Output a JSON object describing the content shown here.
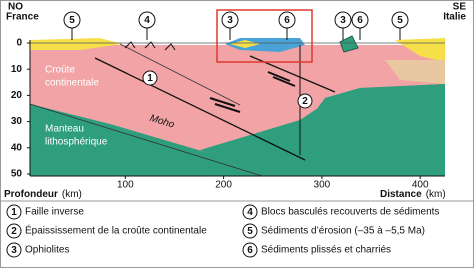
{
  "header": {
    "left": [
      "NO",
      "France"
    ],
    "right": [
      "SE",
      "Italie"
    ]
  },
  "callouts_top": [
    "5",
    "4",
    "3",
    "6",
    "3",
    "6",
    "5"
  ],
  "labels": {
    "crust": [
      "Croûte",
      "continentale"
    ],
    "mantle": [
      "Manteau",
      "lithosphérique"
    ],
    "moho": "Moho"
  },
  "callouts_section": [
    "1",
    "2"
  ],
  "axes": {
    "y_label": "Profondeur",
    "x_label": "Distance",
    "unit": "(km)",
    "y_ticks": [
      0,
      10,
      20,
      30,
      40,
      50
    ],
    "x_ticks": [
      100,
      200,
      300,
      400
    ]
  },
  "legend": [
    {
      "number": "1",
      "text": "Faille inverse"
    },
    {
      "number": "2",
      "text": "Épaississement de la croûte continentale"
    },
    {
      "number": "3",
      "text": "Ophiolites"
    },
    {
      "number": "4",
      "text": "Blocs basculés recouverts de sédiments"
    },
    {
      "number": "5",
      "text": "Sédiments d’érosion (–35 à –5,5 Ma)"
    },
    {
      "number": "6",
      "text": "Sédiments plissés et charriés"
    }
  ]
}
